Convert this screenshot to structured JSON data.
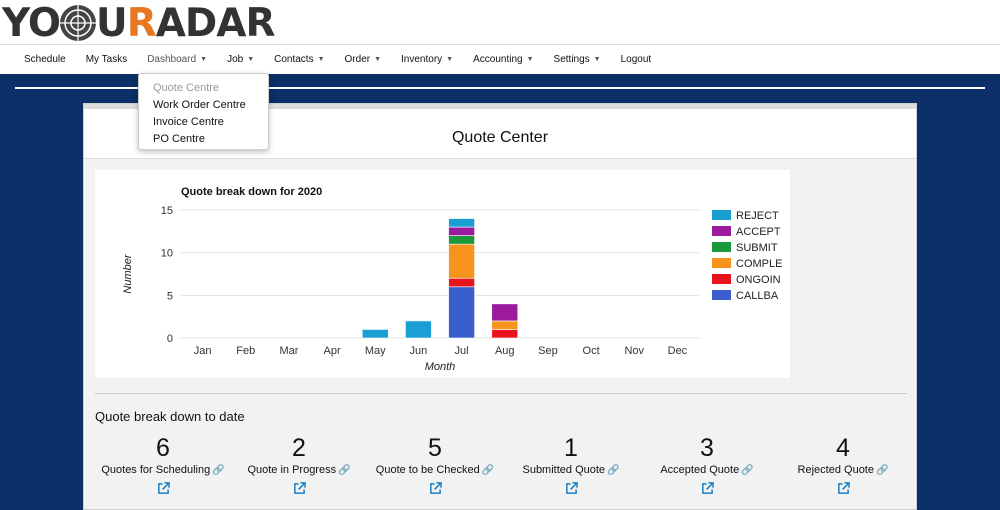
{
  "brand": {
    "logo_prefix": "YO",
    "logo_middle": "UR",
    "logo_r": "R",
    "logo_suffix": "ADAR",
    "accent": "#e87722"
  },
  "nav": {
    "items": [
      {
        "label": "Schedule",
        "caret": false
      },
      {
        "label": "My Tasks",
        "caret": false
      },
      {
        "label": "Dashboard",
        "caret": true
      },
      {
        "label": "Job",
        "caret": true
      },
      {
        "label": "Contacts",
        "caret": true
      },
      {
        "label": "Order",
        "caret": true
      },
      {
        "label": "Inventory",
        "caret": true
      },
      {
        "label": "Accounting",
        "caret": true
      },
      {
        "label": "Settings",
        "caret": true
      },
      {
        "label": "Logout",
        "caret": false
      }
    ]
  },
  "dropdown": {
    "items": [
      "Quote Centre",
      "Work Order Centre",
      "Invoice Centre",
      "PO Centre"
    ]
  },
  "card": {
    "title": "Quote Center"
  },
  "chart_data": {
    "type": "bar",
    "stacked": true,
    "title": "Quote break down for 2020",
    "xlabel": "Month",
    "ylabel": "Number",
    "ylim": [
      0,
      15
    ],
    "yticks": [
      0,
      5,
      10,
      15
    ],
    "grid": true,
    "legend_position": "right",
    "categories": [
      "Jan",
      "Feb",
      "Mar",
      "Apr",
      "May",
      "Jun",
      "Jul",
      "Aug",
      "Sep",
      "Oct",
      "Nov",
      "Dec"
    ],
    "series": [
      {
        "name": "CALLBA",
        "color": "#3a5fcd",
        "values": [
          0,
          0,
          0,
          0,
          0,
          0,
          6,
          0,
          0,
          0,
          0,
          0
        ]
      },
      {
        "name": "ONGOIN",
        "color": "#e8141b",
        "values": [
          0,
          0,
          0,
          0,
          0,
          0,
          1,
          1,
          0,
          0,
          0,
          0
        ]
      },
      {
        "name": "COMPLE",
        "color": "#f7941d",
        "values": [
          0,
          0,
          0,
          0,
          0,
          0,
          4,
          1,
          0,
          0,
          0,
          0
        ]
      },
      {
        "name": "SUBMIT",
        "color": "#1a9a3b",
        "values": [
          0,
          0,
          0,
          0,
          0,
          0,
          1,
          0,
          0,
          0,
          0,
          0
        ]
      },
      {
        "name": "ACCEPT",
        "color": "#9c1a9c",
        "values": [
          0,
          0,
          0,
          0,
          0,
          0,
          1,
          2,
          0,
          0,
          0,
          0
        ]
      },
      {
        "name": "REJECT",
        "color": "#1a9fd4",
        "values": [
          0,
          0,
          0,
          0,
          1,
          2,
          1,
          0,
          0,
          0,
          0,
          0
        ]
      }
    ],
    "legend_order": [
      "REJECT",
      "ACCEPT",
      "SUBMIT",
      "COMPLE",
      "ONGOIN",
      "CALLBA"
    ]
  },
  "breakdown": {
    "title": "Quote break down to date",
    "stats": [
      {
        "value": "6",
        "label": "Quotes for Scheduling"
      },
      {
        "value": "2",
        "label": "Quote in Progress"
      },
      {
        "value": "5",
        "label": "Quote to be Checked"
      },
      {
        "value": "1",
        "label": "Submitted Quote"
      },
      {
        "value": "3",
        "label": "Accepted Quote"
      },
      {
        "value": "4",
        "label": "Rejected Quote"
      }
    ]
  }
}
